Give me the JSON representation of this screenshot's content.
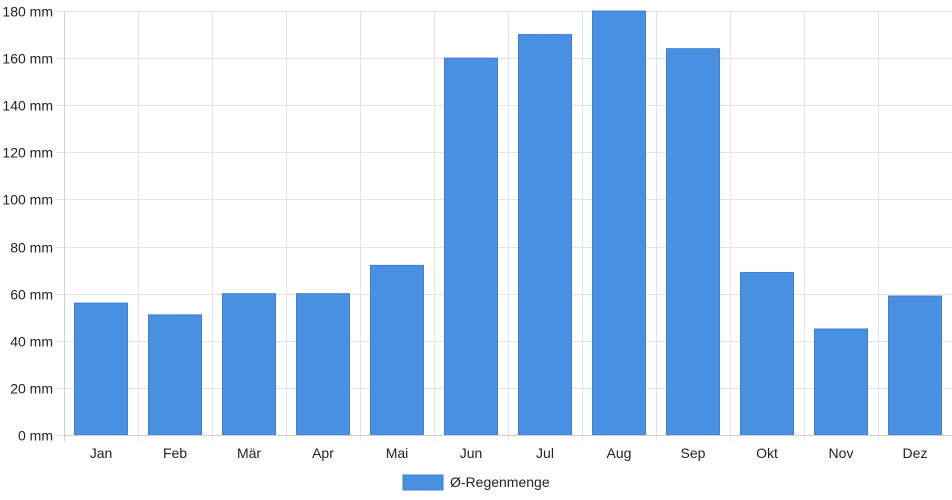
{
  "chart_data": {
    "type": "bar",
    "categories": [
      "Jan",
      "Feb",
      "Mär",
      "Apr",
      "Mai",
      "Jun",
      "Jul",
      "Aug",
      "Sep",
      "Okt",
      "Nov",
      "Dez"
    ],
    "series": [
      {
        "name": "Ø-Regenmenge",
        "color": "#4a90e2",
        "values": [
          56,
          51,
          60,
          60,
          72,
          160,
          170,
          180,
          164,
          69,
          45,
          59
        ]
      }
    ],
    "ylim": [
      0,
      180
    ],
    "yticks": [
      {
        "value": 0,
        "label": "0 mm"
      },
      {
        "value": 20,
        "label": "20 mm"
      },
      {
        "value": 40,
        "label": "40 mm"
      },
      {
        "value": 60,
        "label": "60 mm"
      },
      {
        "value": 80,
        "label": "80 mm"
      },
      {
        "value": 100,
        "label": "100 mm"
      },
      {
        "value": 120,
        "label": "120 mm"
      },
      {
        "value": 140,
        "label": "140 mm"
      },
      {
        "value": 160,
        "label": "160 mm"
      },
      {
        "value": 180,
        "label": "180 mm"
      }
    ],
    "grid": true,
    "legend_position": "bottom-center"
  }
}
